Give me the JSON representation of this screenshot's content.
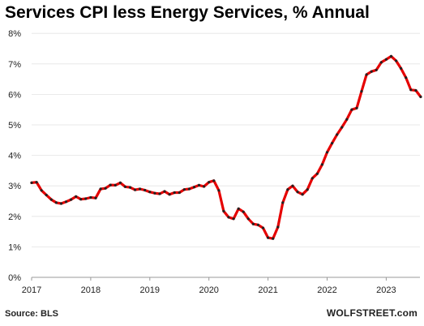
{
  "title": "Services CPI less Energy Services, % Annual",
  "source": "Source: BLS",
  "brand": "WOLFSTREET.com",
  "chart_data": {
    "type": "line",
    "title": "Services CPI less Energy Services, % Annual",
    "xlabel": "",
    "ylabel": "",
    "ylim": [
      0,
      8
    ],
    "xlim": [
      "2017-01",
      "2023-08"
    ],
    "y_ticks": [
      "0%",
      "1%",
      "2%",
      "3%",
      "4%",
      "5%",
      "6%",
      "7%",
      "8%"
    ],
    "x_ticks": [
      "2017",
      "2018",
      "2019",
      "2020",
      "2021",
      "2022",
      "2023"
    ],
    "grid": "horizontal",
    "line_color": "#e60000",
    "marker_color": "#222222",
    "series": [
      {
        "x": [
          "2017-01",
          "2017-02",
          "2017-03",
          "2017-04",
          "2017-05",
          "2017-06",
          "2017-07",
          "2017-08",
          "2017-09",
          "2017-10",
          "2017-11",
          "2017-12",
          "2018-01",
          "2018-02",
          "2018-03",
          "2018-04",
          "2018-05",
          "2018-06",
          "2018-07",
          "2018-08",
          "2018-09",
          "2018-10",
          "2018-11",
          "2018-12",
          "2019-01",
          "2019-02",
          "2019-03",
          "2019-04",
          "2019-05",
          "2019-06",
          "2019-07",
          "2019-08",
          "2019-09",
          "2019-10",
          "2019-11",
          "2019-12",
          "2020-01",
          "2020-02",
          "2020-03",
          "2020-04",
          "2020-05",
          "2020-06",
          "2020-07",
          "2020-08",
          "2020-09",
          "2020-10",
          "2020-11",
          "2020-12",
          "2021-01",
          "2021-02",
          "2021-03",
          "2021-04",
          "2021-05",
          "2021-06",
          "2021-07",
          "2021-08",
          "2021-09",
          "2021-10",
          "2021-11",
          "2021-12",
          "2022-01",
          "2022-02",
          "2022-03",
          "2022-04",
          "2022-05",
          "2022-06",
          "2022-07",
          "2022-08",
          "2022-09",
          "2022-10",
          "2022-11",
          "2022-12",
          "2023-01",
          "2023-02",
          "2023-03",
          "2023-04",
          "2023-05",
          "2023-06",
          "2023-07",
          "2023-08"
        ],
        "values": [
          3.1,
          3.12,
          2.85,
          2.7,
          2.55,
          2.45,
          2.42,
          2.48,
          2.55,
          2.65,
          2.56,
          2.58,
          2.62,
          2.6,
          2.9,
          2.92,
          3.03,
          3.02,
          3.1,
          2.97,
          2.95,
          2.87,
          2.9,
          2.86,
          2.8,
          2.76,
          2.74,
          2.82,
          2.72,
          2.78,
          2.78,
          2.88,
          2.9,
          2.96,
          3.02,
          2.98,
          3.12,
          3.17,
          2.85,
          2.17,
          1.97,
          1.92,
          2.25,
          2.15,
          1.92,
          1.75,
          1.72,
          1.62,
          1.3,
          1.27,
          1.65,
          2.45,
          2.88,
          3.0,
          2.8,
          2.72,
          2.88,
          3.25,
          3.4,
          3.7,
          4.1,
          4.4,
          4.68,
          4.92,
          5.18,
          5.5,
          5.55,
          6.1,
          6.65,
          6.75,
          6.8,
          7.05,
          7.15,
          7.25,
          7.1,
          6.85,
          6.55,
          6.15,
          6.13,
          5.92
        ]
      }
    ]
  }
}
